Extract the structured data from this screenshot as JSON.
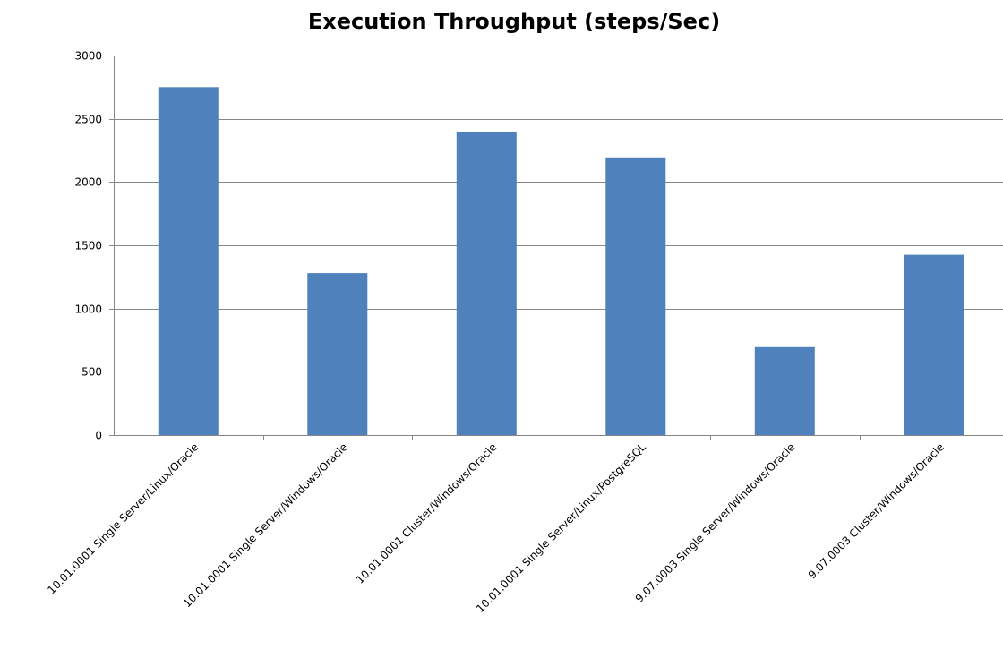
{
  "chart_data": {
    "type": "bar",
    "title": "Execution Throughput (steps/Sec)",
    "xlabel": "",
    "ylabel": "",
    "categories": [
      "10.01.0001 Single Server/Linux/Oracle",
      "10.01.0001 Single Server/Windows/Oracle",
      "10.01.0001 Cluster/Windows/Oracle",
      "10.01.0001 Single Server/Linux/PostgreSQL",
      "9.07.0003 Single Server/Windows/Oracle",
      "9.07.0003 Cluster/Windows/Oracle"
    ],
    "values": [
      2750,
      1280,
      2395,
      2195,
      695,
      1425
    ],
    "ylim": [
      0,
      3000
    ],
    "yticks": [
      0,
      500,
      1000,
      1500,
      2000,
      2500,
      3000
    ],
    "grid": true,
    "legend": "none",
    "colors": {
      "bar": "#4F81BD",
      "grid": "#868686",
      "axis": "#868686"
    }
  }
}
